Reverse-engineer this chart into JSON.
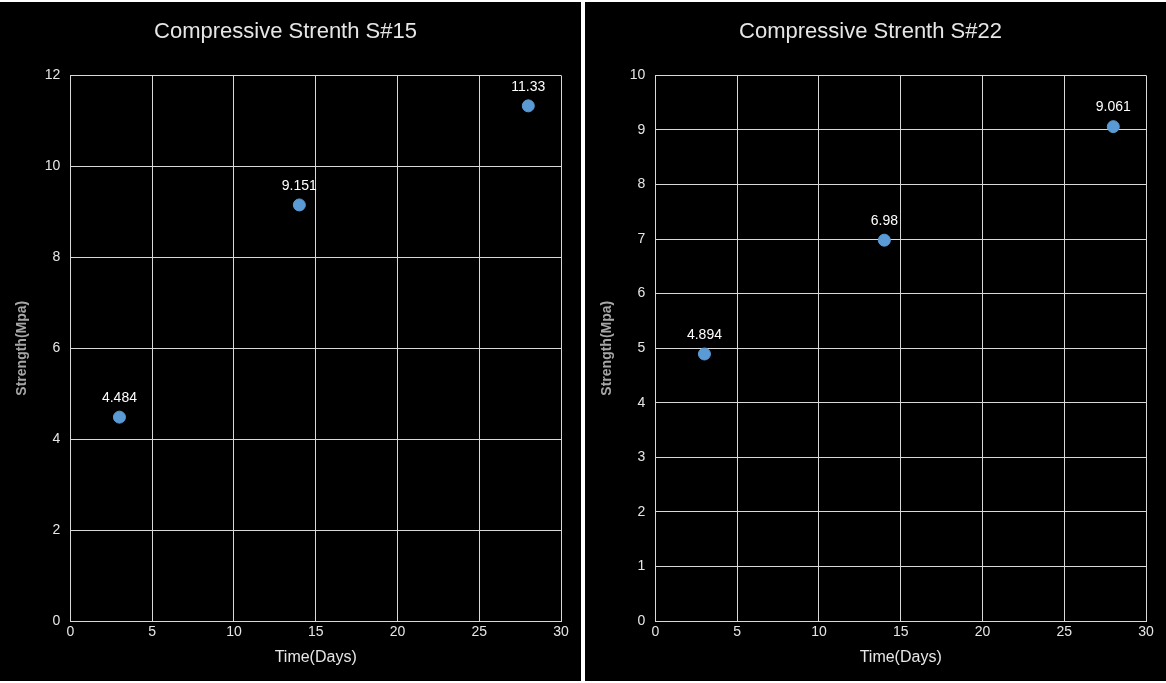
{
  "chart_data": [
    {
      "type": "scatter",
      "title": "Compressive Strenth S#15",
      "xlabel": "Time(Days)",
      "ylabel": "Strength(Mpa)",
      "x": [
        3,
        14,
        28
      ],
      "series": [
        {
          "color": "#5b9bd5",
          "values": [
            4.484,
            9.151,
            11.33
          ]
        }
      ],
      "xlim": [
        0,
        30
      ],
      "xticks": [
        0,
        5,
        10,
        15,
        20,
        25,
        30
      ],
      "ylim": [
        0,
        12
      ],
      "yticks": [
        0,
        2,
        4,
        6,
        8,
        10,
        12
      ],
      "grid": true,
      "legend": false,
      "marker": "circle",
      "data_labels": true
    },
    {
      "type": "scatter",
      "title": "Compressive Strenth S#22",
      "xlabel": "Time(Days)",
      "ylabel": "Strength(Mpa)",
      "x": [
        3,
        14,
        28
      ],
      "series": [
        {
          "color": "#5b9bd5",
          "values": [
            4.894,
            6.98,
            9.061
          ]
        }
      ],
      "xlim": [
        0,
        30
      ],
      "xticks": [
        0,
        5,
        10,
        15,
        20,
        25,
        30
      ],
      "ylim": [
        0,
        10
      ],
      "yticks": [
        0,
        1,
        2,
        3,
        4,
        5,
        6,
        7,
        8,
        9,
        10
      ],
      "grid": true,
      "legend": false,
      "marker": "circle",
      "data_labels": true
    }
  ]
}
